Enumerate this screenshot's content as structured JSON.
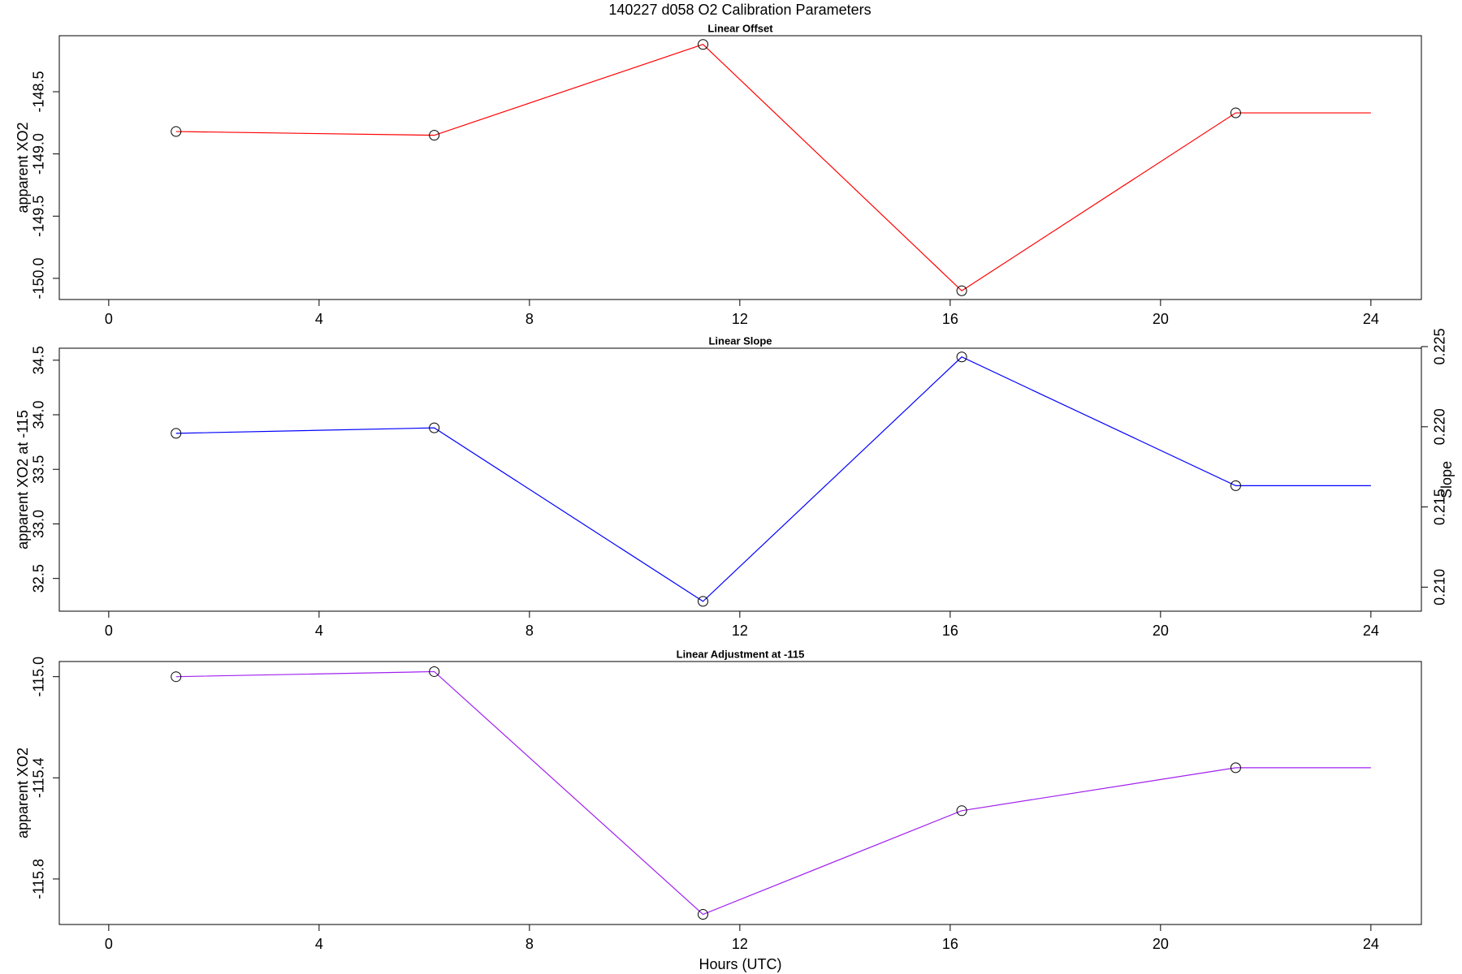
{
  "title": "140227   d058   O2 Calibration Parameters",
  "chart_data": [
    {
      "type": "line",
      "title": "Linear Offset",
      "ylabel": "apparent XO2",
      "color": "#ff0000",
      "x": [
        1.28,
        6.19,
        11.3,
        16.22,
        21.43,
        24
      ],
      "values": [
        -148.82,
        -148.85,
        -148.12,
        -150.1,
        -148.67,
        -148.67
      ],
      "xlim": [
        -0.94,
        24.96
      ],
      "xticks": [
        0,
        4,
        8,
        12,
        16,
        20,
        24
      ],
      "ylim": [
        -150.17,
        -148.05
      ],
      "yticks": [
        {
          "value": -150,
          "label": "-150.0"
        },
        -149.5,
        {
          "value": -149,
          "label": "-149.0"
        },
        -148.5
      ]
    },
    {
      "type": "line",
      "title": "Linear Slope",
      "ylabel": "apparent XO2 at -115",
      "y2label": "Slope",
      "color": "#0000ff",
      "x": [
        1.28,
        6.19,
        11.3,
        16.22,
        21.43,
        24
      ],
      "values": [
        33.83,
        33.88,
        32.29,
        34.53,
        33.35,
        33.35
      ],
      "xlim": [
        -0.94,
        24.96
      ],
      "xticks": [
        0,
        4,
        8,
        12,
        16,
        20,
        24
      ],
      "ylim": [
        32.2,
        34.61
      ],
      "yticks": [
        32.5,
        {
          "value": 33,
          "label": "33.0"
        },
        33.5,
        {
          "value": 34,
          "label": "34.0"
        },
        34.5
      ],
      "y2lim": [
        0.2085,
        0.2249
      ],
      "y2ticks": [
        {
          "value": 0.21,
          "label": "0.210"
        },
        0.215,
        {
          "value": 0.22,
          "label": "0.220"
        },
        0.225
      ]
    },
    {
      "type": "line",
      "title": "Linear Adjustment at -115",
      "ylabel": "apparent XO2",
      "xlabel": "Hours (UTC)",
      "color": "#a020f0",
      "x": [
        1.28,
        6.19,
        11.3,
        16.22,
        21.43,
        24
      ],
      "values": [
        -115.0,
        -114.98,
        -115.94,
        -115.53,
        -115.36,
        -115.36
      ],
      "xlim": [
        -0.94,
        24.96
      ],
      "xticks": [
        0,
        4,
        8,
        12,
        16,
        20,
        24
      ],
      "ylim": [
        -115.98,
        -114.94
      ],
      "yticks": [
        -115.8,
        -115.4,
        {
          "value": -115,
          "label": "-115.0"
        }
      ]
    }
  ]
}
